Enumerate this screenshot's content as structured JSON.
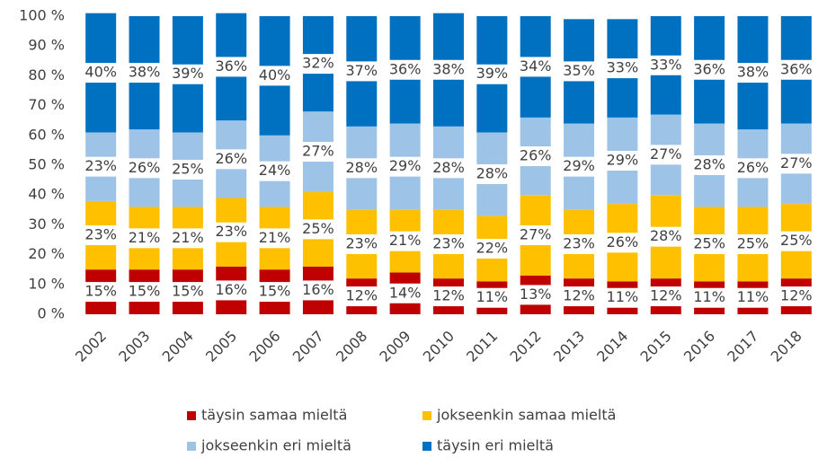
{
  "chart_data": {
    "type": "stacked_bar",
    "categories": [
      "2002",
      "2003",
      "2004",
      "2005",
      "2006",
      "2007",
      "2008",
      "2009",
      "2010",
      "2011",
      "2012",
      "2013",
      "2014",
      "2015",
      "2016",
      "2017",
      "2018"
    ],
    "series": [
      {
        "name": "täysin samaa mieltä",
        "color": "#c00000",
        "values": [
          15,
          15,
          15,
          16,
          15,
          16,
          12,
          14,
          12,
          11,
          13,
          12,
          11,
          12,
          11,
          11,
          12
        ],
        "value_labels": [
          "15%",
          "15%",
          "15%",
          "16%",
          "15%",
          "16%",
          "12%",
          "14%",
          "12%",
          "11%",
          "13%",
          "12%",
          "11%",
          "12%",
          "11%",
          "11%",
          "12%"
        ]
      },
      {
        "name": "jokseenkin samaa mieltä",
        "color": "#ffc000",
        "values": [
          23,
          21,
          21,
          23,
          21,
          25,
          23,
          21,
          23,
          22,
          27,
          23,
          26,
          28,
          25,
          25,
          25
        ],
        "value_labels": [
          "23%",
          "21%",
          "21%",
          "23%",
          "21%",
          "25%",
          "23%",
          "21%",
          "23%",
          "22%",
          "27%",
          "23%",
          "26%",
          "28%",
          "25%",
          "25%",
          "25%"
        ]
      },
      {
        "name": "jokseenkin eri mieltä",
        "color": "#9dc3e6",
        "values": [
          23,
          26,
          25,
          26,
          24,
          27,
          28,
          29,
          28,
          28,
          26,
          29,
          29,
          27,
          28,
          26,
          27
        ],
        "value_labels": [
          "23%",
          "26%",
          "25%",
          "26%",
          "24%",
          "27%",
          "28%",
          "29%",
          "28%",
          "28%",
          "26%",
          "29%",
          "29%",
          "27%",
          "28%",
          "26%",
          "27%"
        ]
      },
      {
        "name": "täysin eri mieltä",
        "color": "#0070c0",
        "values": [
          40,
          38,
          39,
          36,
          40,
          32,
          37,
          36,
          38,
          39,
          34,
          35,
          33,
          33,
          36,
          38,
          36
        ],
        "value_labels": [
          "40%",
          "38%",
          "39%",
          "36%",
          "40%",
          "32%",
          "37%",
          "36%",
          "38%",
          "39%",
          "34%",
          "35%",
          "33%",
          "33%",
          "36%",
          "38%",
          "36%"
        ]
      }
    ],
    "ylim": [
      0,
      100
    ],
    "yticks": [
      {
        "value": 0,
        "label": "0 %"
      },
      {
        "value": 10,
        "label": "10 %"
      },
      {
        "value": 20,
        "label": "20 %"
      },
      {
        "value": 30,
        "label": "30 %"
      },
      {
        "value": 40,
        "label": "40 %"
      },
      {
        "value": 50,
        "label": "50 %"
      },
      {
        "value": 60,
        "label": "60 %"
      },
      {
        "value": 70,
        "label": "70 %"
      },
      {
        "value": 80,
        "label": "80 %"
      },
      {
        "value": 90,
        "label": "90 %"
      },
      {
        "value": 100,
        "label": "100 %"
      }
    ],
    "legend": "bottom"
  }
}
